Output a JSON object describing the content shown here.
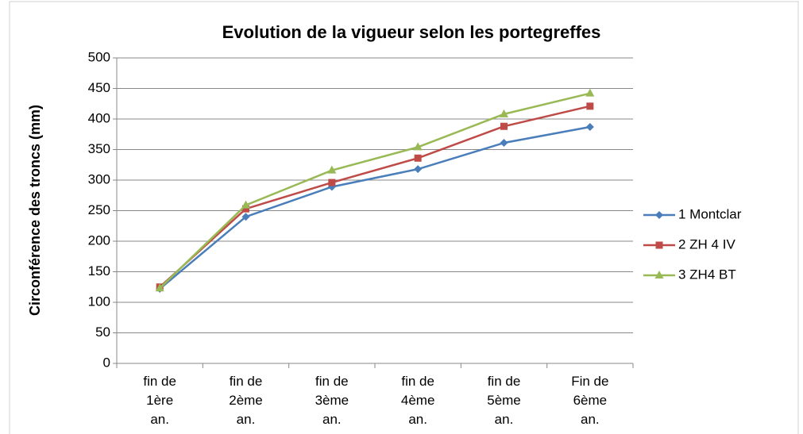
{
  "chart_data": {
    "type": "line",
    "title": "Evolution de la vigueur selon les portegreffes",
    "y_label": "Circonférence des troncs (mm)",
    "categories": [
      "fin de 1ère an.",
      "fin de 2ème an.",
      "fin de 3ème an.",
      "fin de 4ème an.",
      "fin de 5ème an.",
      "Fin de 6ème an."
    ],
    "series": [
      {
        "name": "1 Montclar",
        "color": "#4a7ebb",
        "marker": "diamond",
        "values": [
          122,
          240,
          289,
          318,
          361,
          387
        ]
      },
      {
        "name": "2 ZH 4 IV",
        "color": "#be4b48",
        "marker": "square",
        "values": [
          125,
          253,
          296,
          336,
          388,
          421
        ]
      },
      {
        "name": "3 ZH4 BT",
        "color": "#98b954",
        "marker": "triangle",
        "values": [
          123,
          259,
          316,
          354,
          408,
          442
        ]
      }
    ],
    "ylim": [
      0,
      500
    ],
    "yticks": [
      0,
      50,
      100,
      150,
      200,
      250,
      300,
      350,
      400,
      450,
      500
    ],
    "grid": true,
    "legend": "right"
  }
}
